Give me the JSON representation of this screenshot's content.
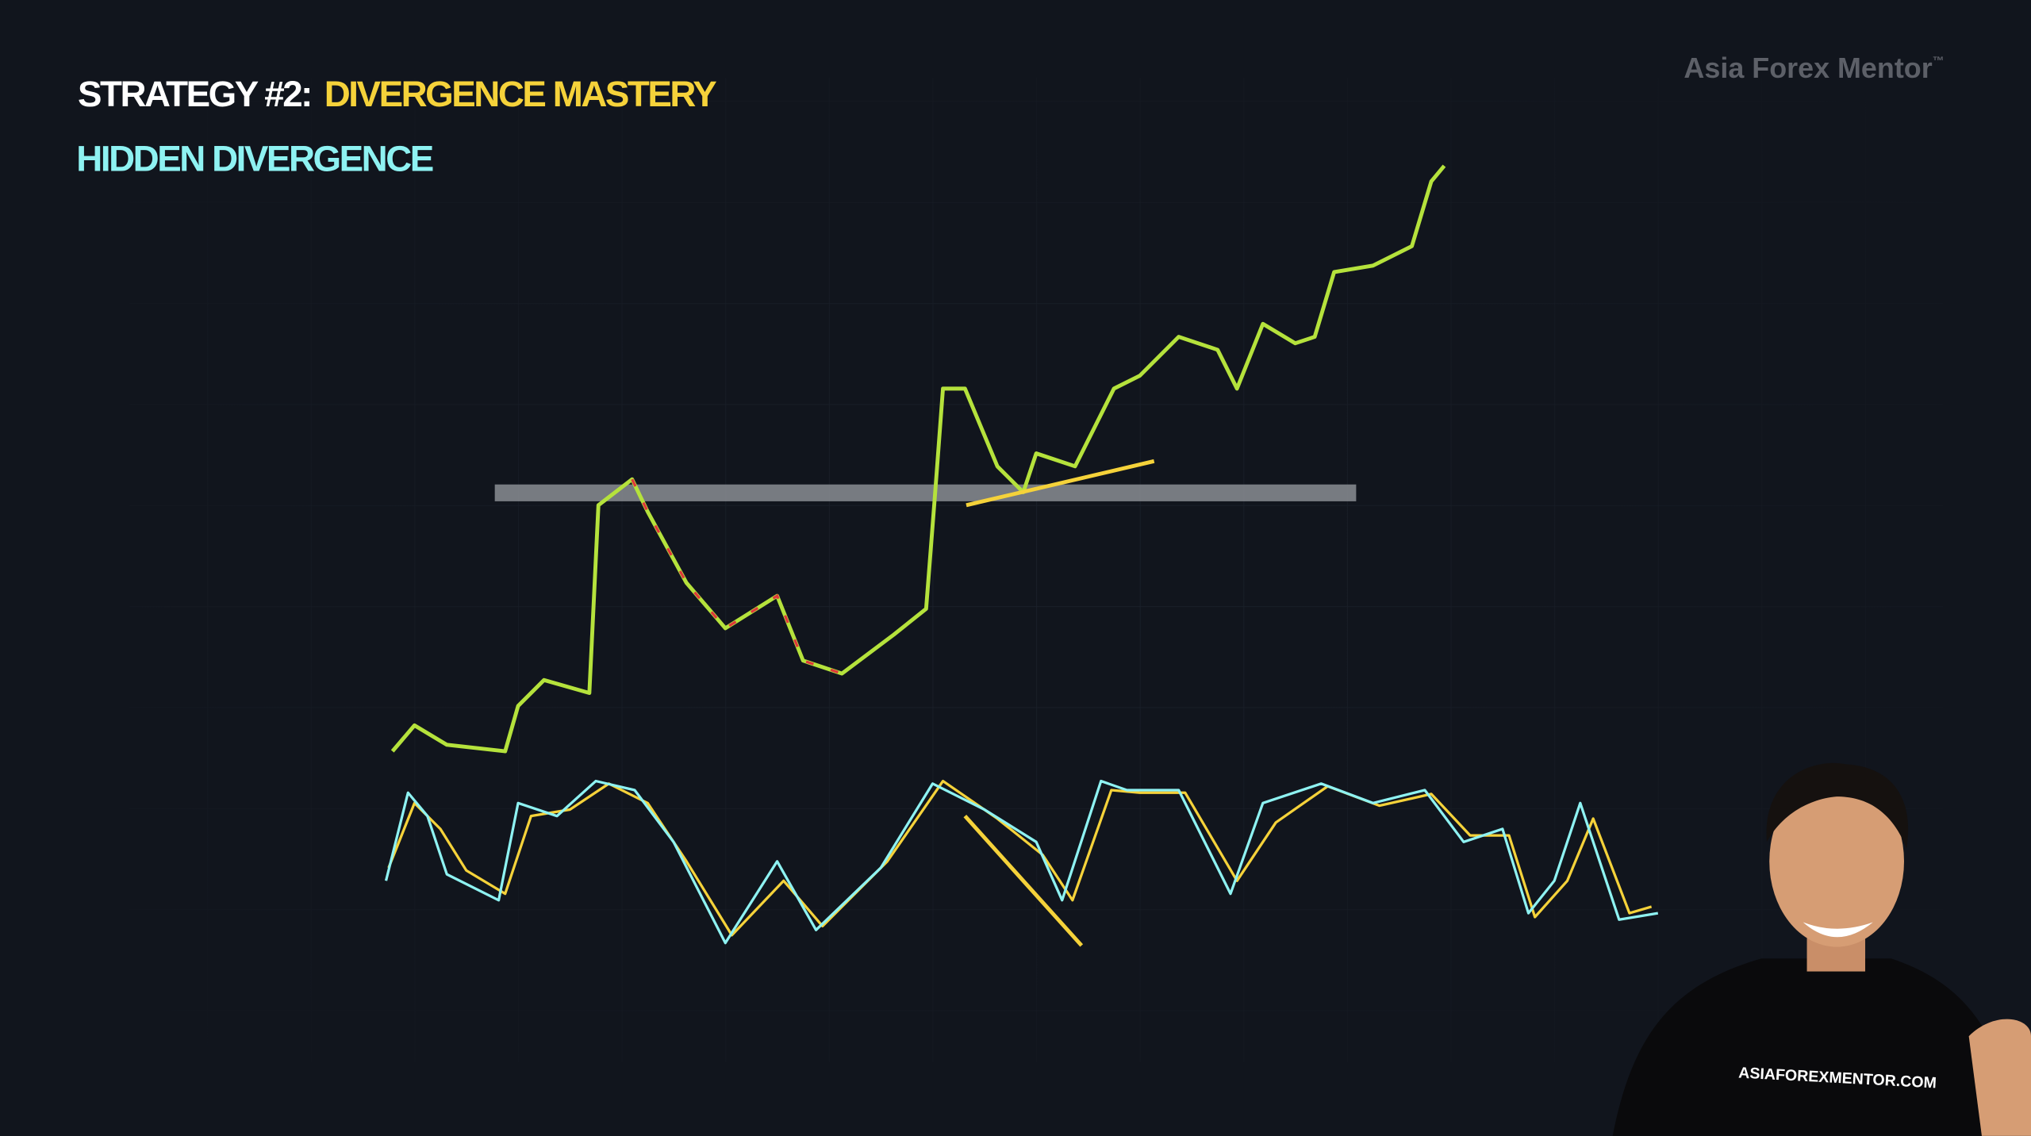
{
  "header": {
    "title_prefix": "STRATEGY #2:",
    "title_highlight": "DIVERGENCE MASTERY",
    "subtitle": "HIDDEN DIVERGENCE"
  },
  "watermark": {
    "brand": "Asia Forex Mentor",
    "trademark": "™"
  },
  "presenter": {
    "shirt_text": "ASIAFOREXMENTOR.COM"
  }
}
